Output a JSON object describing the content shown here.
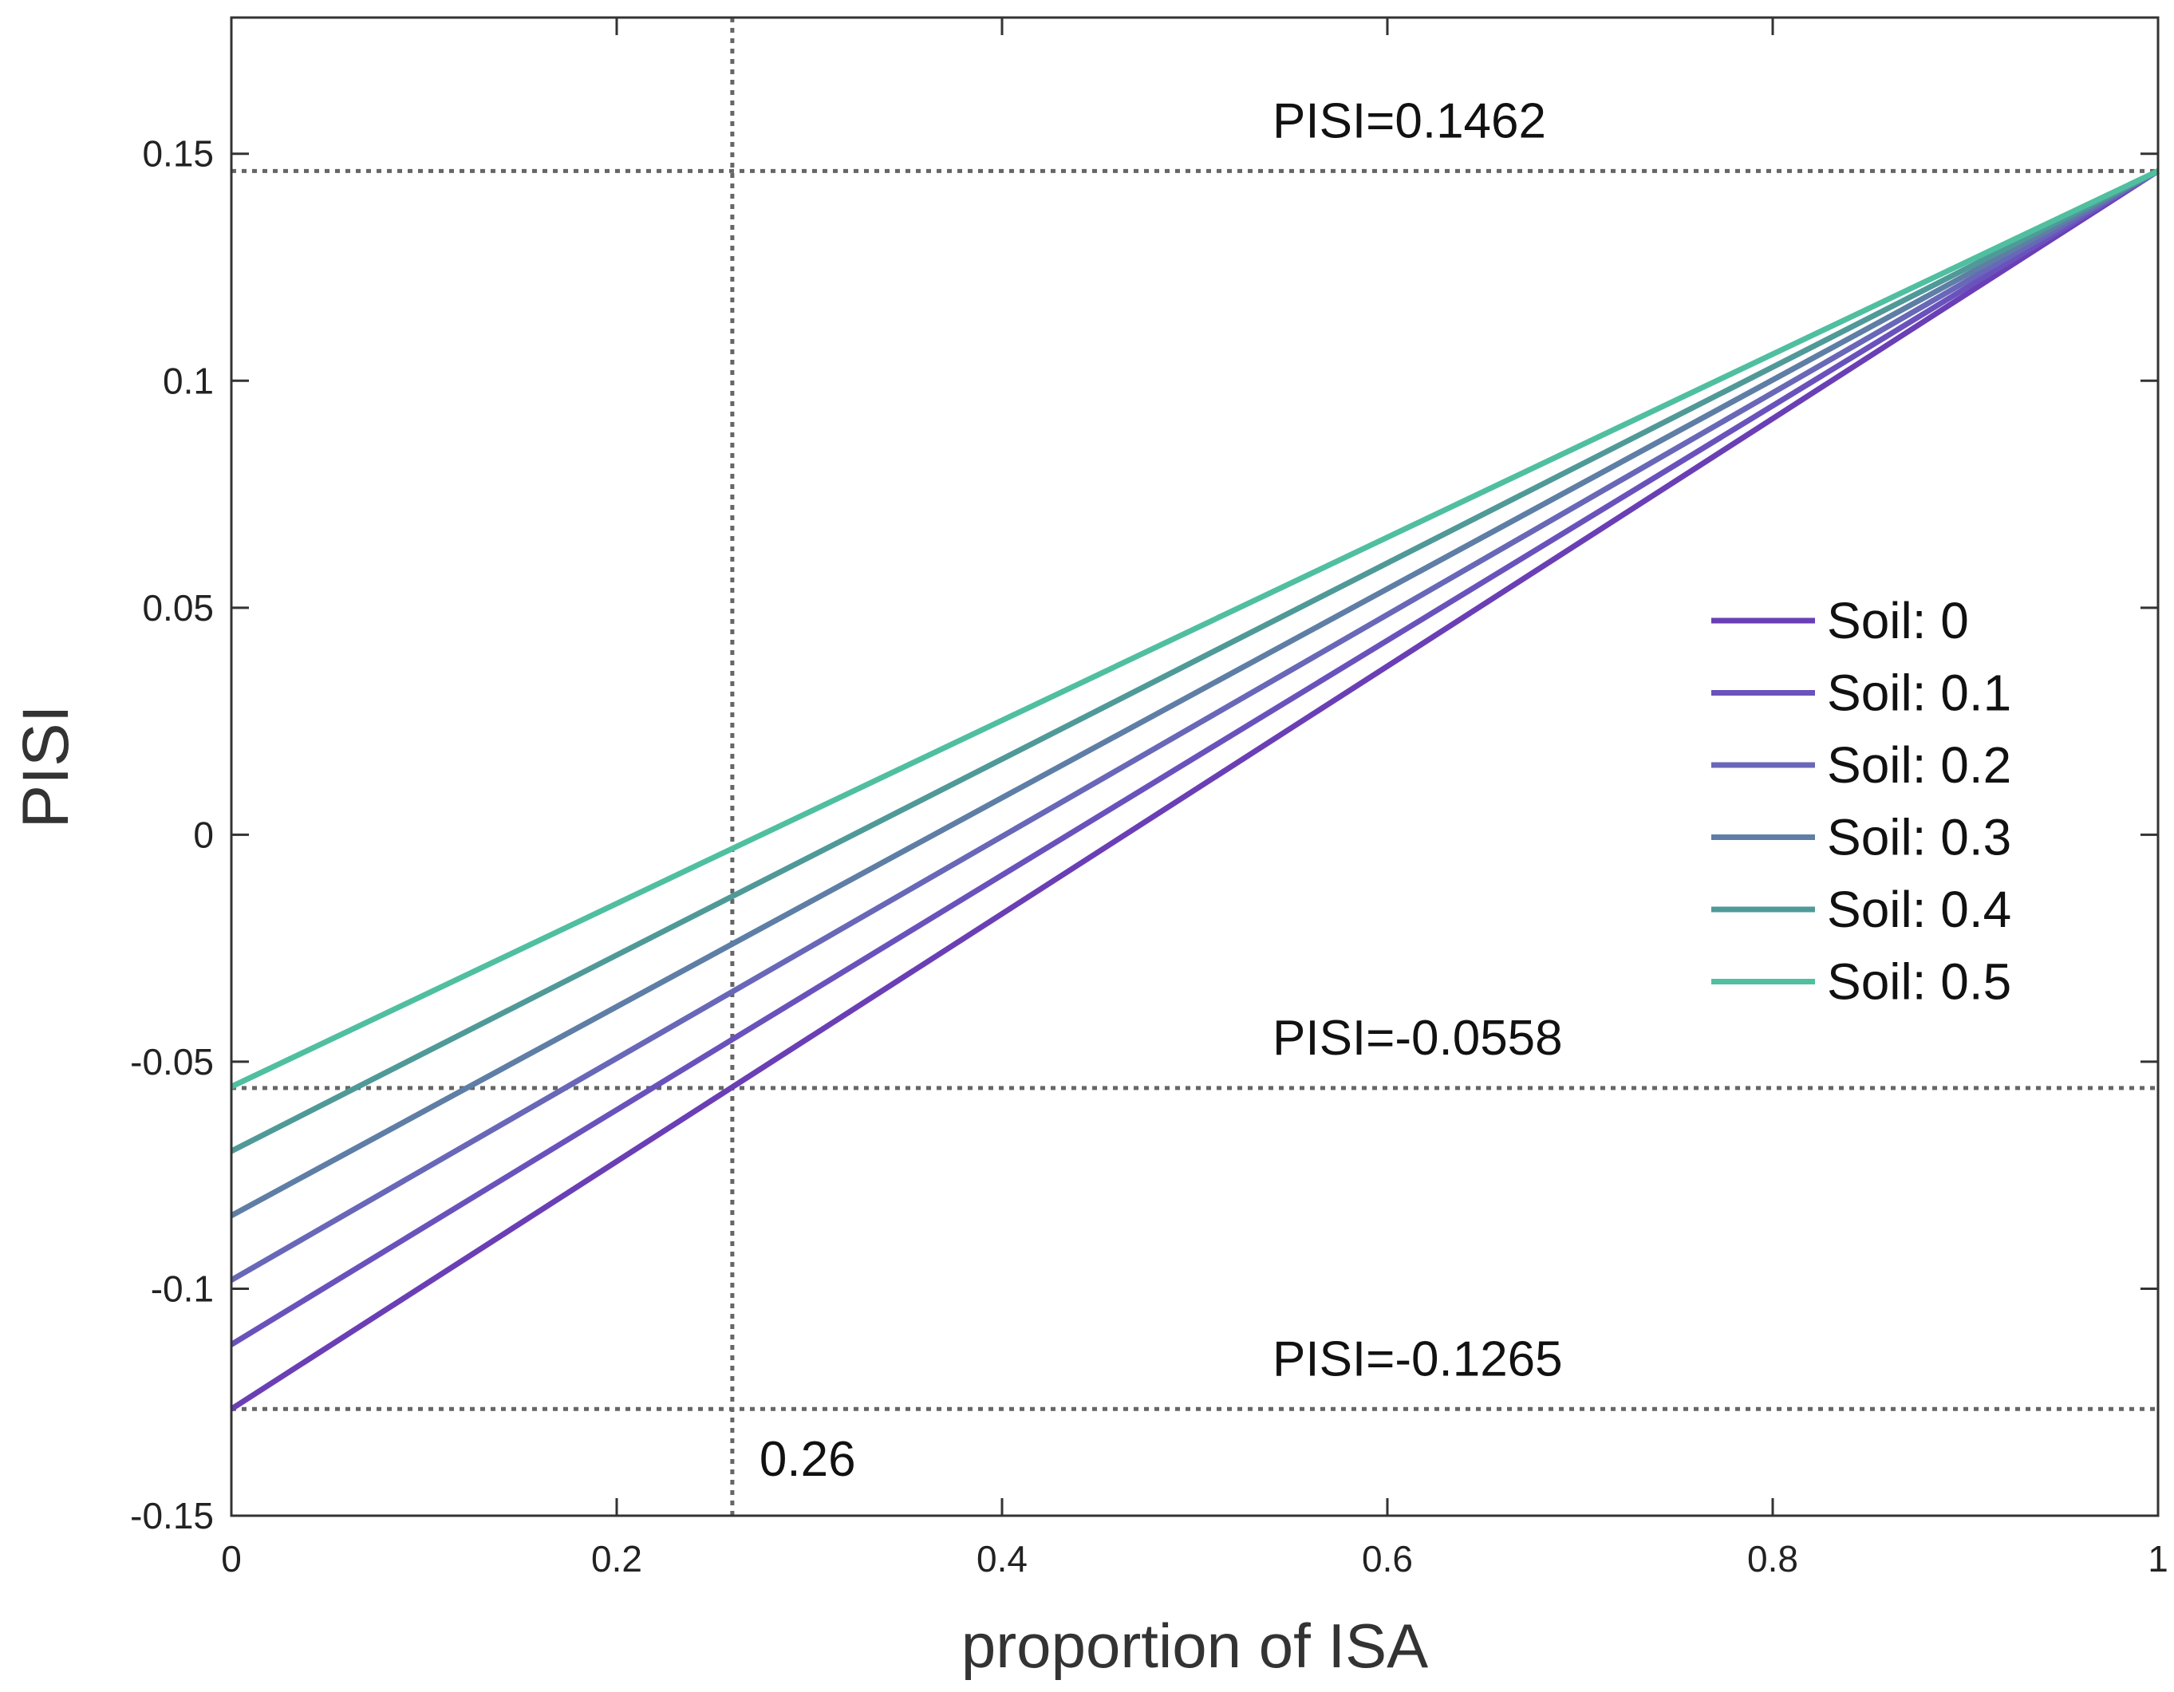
{
  "chart_data": {
    "type": "line",
    "title": "",
    "xlabel": "proportion of ISA",
    "ylabel": "PISI",
    "xlim": [
      0,
      1
    ],
    "ylim": [
      -0.15,
      0.18
    ],
    "grid": false,
    "legend_position": "right-middle",
    "x_ticks": [
      {
        "value": 0,
        "label": "0"
      },
      {
        "value": 0.2,
        "label": "0.2"
      },
      {
        "value": 0.4,
        "label": "0.4"
      },
      {
        "value": 0.6,
        "label": "0.6"
      },
      {
        "value": 0.8,
        "label": "0.8"
      },
      {
        "value": 1,
        "label": "1"
      }
    ],
    "y_ticks": [
      {
        "value": -0.15,
        "label": "-0.15"
      },
      {
        "value": -0.1,
        "label": "-0.1"
      },
      {
        "value": -0.05,
        "label": "-0.05"
      },
      {
        "value": 0,
        "label": "0"
      },
      {
        "value": 0.05,
        "label": "0.05"
      },
      {
        "value": 0.1,
        "label": "0.1"
      },
      {
        "value": 0.15,
        "label": "0.15"
      }
    ],
    "series": [
      {
        "name": "Soil: 0",
        "x": [
          0,
          1
        ],
        "y": [
          -0.1265,
          0.1462
        ],
        "color": "#6a3fb5"
      },
      {
        "name": "Soil: 0.1",
        "x": [
          0,
          1
        ],
        "y": [
          -0.1123,
          0.1462
        ],
        "color": "#6a52bc"
      },
      {
        "name": "Soil: 0.2",
        "x": [
          0,
          1
        ],
        "y": [
          -0.0981,
          0.1462
        ],
        "color": "#6867b8"
      },
      {
        "name": "Soil: 0.3",
        "x": [
          0,
          1
        ],
        "y": [
          -0.0839,
          0.1462
        ],
        "color": "#5e7ea6"
      },
      {
        "name": "Soil: 0.4",
        "x": [
          0,
          1
        ],
        "y": [
          -0.0697,
          0.1462
        ],
        "color": "#4f9a98"
      },
      {
        "name": "Soil: 0.5",
        "x": [
          0,
          1
        ],
        "y": [
          -0.0555,
          0.1462
        ],
        "color": "#4fbfa0"
      }
    ],
    "reference_lines": [
      {
        "name": "ref-hline-top",
        "orientation": "horizontal",
        "value": 0.1462,
        "label": "PISI=0.1462"
      },
      {
        "name": "ref-hline-mid",
        "orientation": "horizontal",
        "value": -0.0558,
        "label": "PISI=-0.0558"
      },
      {
        "name": "ref-hline-bottom",
        "orientation": "horizontal",
        "value": -0.1265,
        "label": "PISI=-0.1265"
      },
      {
        "name": "ref-vline",
        "orientation": "vertical",
        "value": 0.26,
        "label": "0.26"
      }
    ]
  },
  "colors": {
    "axis": "#333333",
    "reference": "#666666"
  }
}
